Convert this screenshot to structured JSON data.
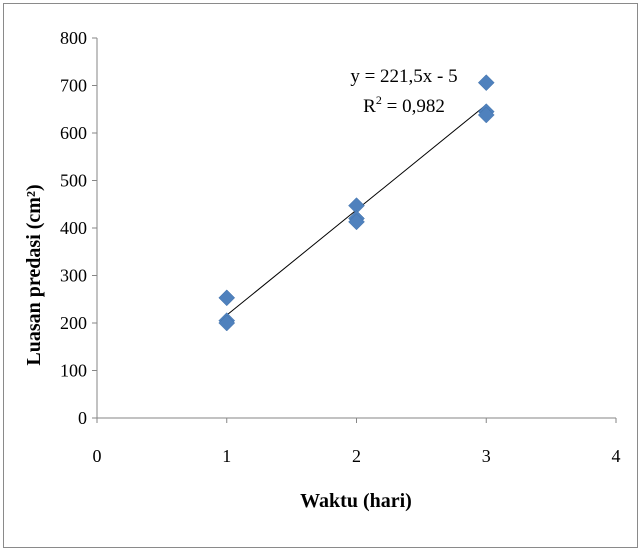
{
  "chart_data": {
    "type": "scatter",
    "title": "",
    "xlabel": "Waktu (hari)",
    "ylabel": "Luasan predasi (cm²)",
    "xlim": [
      0,
      4
    ],
    "ylim": [
      0,
      800
    ],
    "xticks": [
      "0",
      "1",
      "2",
      "3",
      "4"
    ],
    "yticks": [
      "0",
      "100",
      "200",
      "300",
      "400",
      "500",
      "600",
      "700",
      "800"
    ],
    "grid": false,
    "legend": "none",
    "series": [
      {
        "marker": "diamond",
        "color": "#4F81BD",
        "points": [
          {
            "x": 1,
            "y": 253
          },
          {
            "x": 1,
            "y": 205
          },
          {
            "x": 1,
            "y": 200
          },
          {
            "x": 2,
            "y": 447
          },
          {
            "x": 2,
            "y": 420
          },
          {
            "x": 2,
            "y": 413
          },
          {
            "x": 3,
            "y": 706
          },
          {
            "x": 3,
            "y": 645
          },
          {
            "x": 3,
            "y": 638
          }
        ]
      }
    ],
    "trendline": {
      "type": "linear",
      "slope": 221.5,
      "intercept": -5,
      "x_range": [
        1,
        3
      ],
      "color": "#000000",
      "equation_label": "y = 221,5x - 5",
      "r2_prefix": "R",
      "r2_suffix": " = 0,982"
    }
  }
}
